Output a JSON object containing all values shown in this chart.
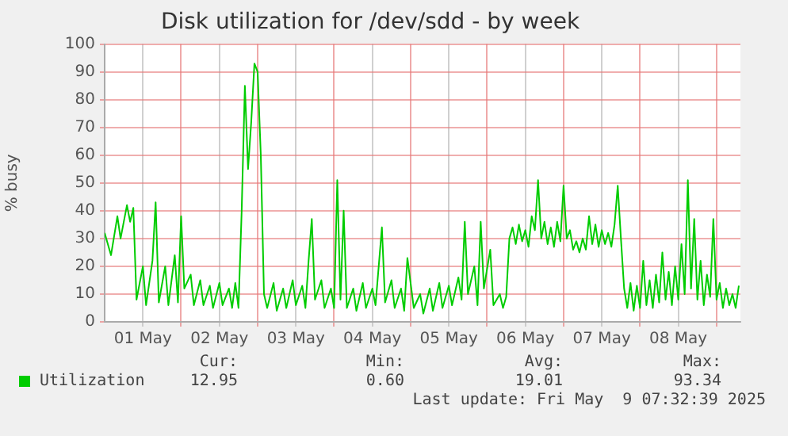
{
  "chart_data": {
    "type": "line",
    "title": "Disk utilization for /dev/sdd - by week",
    "ylabel": "% busy",
    "series": [
      {
        "name": "Utilization",
        "color": "#00cc00",
        "x": [
          "2025-05-01T00:00",
          "2025-05-01T02:00",
          "2025-05-01T04:00",
          "2025-05-01T05:00",
          "2025-05-01T07:00",
          "2025-05-01T08:00",
          "2025-05-01T09:00",
          "2025-05-01T10:00",
          "2025-05-01T12:00",
          "2025-05-01T13:00",
          "2025-05-01T15:00",
          "2025-05-01T16:00",
          "2025-05-01T17:00",
          "2025-05-01T19:00",
          "2025-05-01T20:00",
          "2025-05-01T22:00",
          "2025-05-01T23:00",
          "2025-05-02T00:00",
          "2025-05-02T01:00",
          "2025-05-02T03:00",
          "2025-05-02T04:00",
          "2025-05-02T06:00",
          "2025-05-02T07:00",
          "2025-05-02T09:00",
          "2025-05-02T10:00",
          "2025-05-02T12:00",
          "2025-05-02T13:00",
          "2025-05-02T15:00",
          "2025-05-02T16:00",
          "2025-05-02T17:00",
          "2025-05-02T18:00",
          "2025-05-02T19:00",
          "2025-05-02T20:00",
          "2025-05-02T21:00",
          "2025-05-02T22:00",
          "2025-05-02T23:00",
          "2025-05-03T00:00",
          "2025-05-03T01:00",
          "2025-05-03T02:00",
          "2025-05-03T03:00",
          "2025-05-03T05:00",
          "2025-05-03T06:00",
          "2025-05-03T08:00",
          "2025-05-03T09:00",
          "2025-05-03T11:00",
          "2025-05-03T12:00",
          "2025-05-03T14:00",
          "2025-05-03T15:00",
          "2025-05-03T16:00",
          "2025-05-03T17:00",
          "2025-05-03T18:00",
          "2025-05-03T20:00",
          "2025-05-03T21:00",
          "2025-05-03T23:00",
          "2025-05-04T00:00",
          "2025-05-04T01:00",
          "2025-05-04T02:00",
          "2025-05-04T03:00",
          "2025-05-04T04:00",
          "2025-05-04T06:00",
          "2025-05-04T07:00",
          "2025-05-04T09:00",
          "2025-05-04T10:00",
          "2025-05-04T12:00",
          "2025-05-04T13:00",
          "2025-05-04T15:00",
          "2025-05-04T16:00",
          "2025-05-04T18:00",
          "2025-05-04T19:00",
          "2025-05-04T21:00",
          "2025-05-04T22:00",
          "2025-05-04T23:00",
          "2025-05-05T01:00",
          "2025-05-05T03:00",
          "2025-05-05T04:00",
          "2025-05-05T06:00",
          "2025-05-05T07:00",
          "2025-05-05T09:00",
          "2025-05-05T10:00",
          "2025-05-05T12:00",
          "2025-05-05T13:00",
          "2025-05-05T15:00",
          "2025-05-05T16:00",
          "2025-05-05T17:00",
          "2025-05-05T18:00",
          "2025-05-05T20:00",
          "2025-05-05T21:00",
          "2025-05-05T22:00",
          "2025-05-05T23:00",
          "2025-05-06T01:00",
          "2025-05-06T02:00",
          "2025-05-06T04:00",
          "2025-05-06T05:00",
          "2025-05-06T06:00",
          "2025-05-06T07:00",
          "2025-05-06T08:00",
          "2025-05-06T09:00",
          "2025-05-06T10:00",
          "2025-05-06T11:00",
          "2025-05-06T12:00",
          "2025-05-06T13:00",
          "2025-05-06T14:00",
          "2025-05-06T15:00",
          "2025-05-06T16:00",
          "2025-05-06T17:00",
          "2025-05-06T18:00",
          "2025-05-06T19:00",
          "2025-05-06T20:00",
          "2025-05-06T21:00",
          "2025-05-06T22:00",
          "2025-05-06T23:00",
          "2025-05-07T00:00",
          "2025-05-07T01:00",
          "2025-05-07T02:00",
          "2025-05-07T03:00",
          "2025-05-07T04:00",
          "2025-05-07T05:00",
          "2025-05-07T06:00",
          "2025-05-07T07:00",
          "2025-05-07T08:00",
          "2025-05-07T09:00",
          "2025-05-07T10:00",
          "2025-05-07T11:00",
          "2025-05-07T12:00",
          "2025-05-07T13:00",
          "2025-05-07T14:00",
          "2025-05-07T15:00",
          "2025-05-07T16:00",
          "2025-05-07T17:00",
          "2025-05-07T18:00",
          "2025-05-07T19:00",
          "2025-05-07T20:00",
          "2025-05-07T21:00",
          "2025-05-07T22:00",
          "2025-05-07T23:00",
          "2025-05-08T00:00",
          "2025-05-08T01:00",
          "2025-05-08T02:00",
          "2025-05-08T03:00",
          "2025-05-08T04:00",
          "2025-05-08T05:00",
          "2025-05-08T06:00",
          "2025-05-08T07:00",
          "2025-05-08T08:00",
          "2025-05-08T09:00",
          "2025-05-08T10:00",
          "2025-05-08T11:00",
          "2025-05-08T12:00",
          "2025-05-08T13:00",
          "2025-05-08T14:00",
          "2025-05-08T15:00",
          "2025-05-08T16:00",
          "2025-05-08T17:00",
          "2025-05-08T18:00",
          "2025-05-08T19:00",
          "2025-05-08T20:00",
          "2025-05-08T21:00",
          "2025-05-08T22:00",
          "2025-05-08T23:00",
          "2025-05-09T00:00",
          "2025-05-09T01:00",
          "2025-05-09T02:00",
          "2025-05-09T03:00",
          "2025-05-09T04:00",
          "2025-05-09T05:00",
          "2025-05-09T06:00",
          "2025-05-09T07:00"
        ],
        "values": [
          32,
          24,
          38,
          30,
          42,
          36,
          41,
          8,
          20,
          6,
          22,
          43,
          7,
          20,
          6,
          24,
          7,
          38,
          12,
          17,
          6,
          15,
          6,
          13,
          5,
          14,
          6,
          12,
          5,
          14,
          5,
          40,
          85,
          55,
          72,
          93,
          90,
          60,
          10,
          5,
          14,
          4,
          12,
          5,
          15,
          6,
          13,
          5,
          22,
          37,
          8,
          15,
          5,
          12,
          5,
          51,
          8,
          40,
          5,
          12,
          4,
          14,
          5,
          12,
          6,
          34,
          7,
          15,
          5,
          12,
          4,
          23,
          5,
          10,
          3,
          12,
          4,
          14,
          5,
          13,
          6,
          16,
          8,
          36,
          10,
          20,
          6,
          36,
          12,
          26,
          6,
          10,
          5,
          9,
          30,
          34,
          28,
          35,
          29,
          33,
          27,
          38,
          33,
          51,
          30,
          36,
          28,
          34,
          27,
          36,
          29,
          49,
          30,
          33,
          26,
          29,
          25,
          30,
          26,
          38,
          28,
          35,
          27,
          33,
          28,
          32,
          27,
          35,
          49,
          30,
          12,
          5,
          14,
          4,
          13,
          5,
          22,
          6,
          15,
          5,
          17,
          7,
          25,
          8,
          18,
          6,
          20,
          8,
          28,
          10,
          51,
          12,
          37,
          8,
          22,
          6,
          17,
          9,
          37,
          8,
          14,
          5,
          12,
          6,
          10,
          5,
          13
        ]
      }
    ],
    "xlim": [
      "2025-05-01T00:00",
      "2025-05-09T07:30"
    ],
    "xticks": [
      {
        "value": "2025-05-01T12:00",
        "label": "01 May"
      },
      {
        "value": "2025-05-02T00:00",
        "label": null
      },
      {
        "value": "2025-05-02T12:00",
        "label": "02 May"
      },
      {
        "value": "2025-05-03T00:00",
        "label": null
      },
      {
        "value": "2025-05-03T12:00",
        "label": "03 May"
      },
      {
        "value": "2025-05-04T00:00",
        "label": null
      },
      {
        "value": "2025-05-04T12:00",
        "label": "04 May"
      },
      {
        "value": "2025-05-05T00:00",
        "label": null
      },
      {
        "value": "2025-05-05T12:00",
        "label": "05 May"
      },
      {
        "value": "2025-05-06T00:00",
        "label": null
      },
      {
        "value": "2025-05-06T12:00",
        "label": "06 May"
      },
      {
        "value": "2025-05-07T00:00",
        "label": null
      },
      {
        "value": "2025-05-07T12:00",
        "label": "07 May"
      },
      {
        "value": "2025-05-08T00:00",
        "label": null
      },
      {
        "value": "2025-05-08T12:00",
        "label": "08 May"
      },
      {
        "value": "2025-05-09T00:00",
        "label": null
      }
    ],
    "ylim": [
      0,
      100
    ],
    "yticks": [
      0,
      10,
      20,
      30,
      40,
      50,
      60,
      70,
      80,
      90,
      100
    ],
    "grid": true,
    "legend": "bottom",
    "marker": "none",
    "line_style": "solid",
    "annotations": [
      "Cur:",
      "Min:",
      "Avg:",
      "Max:",
      "12.95",
      "0.60",
      "19.01",
      "93.34",
      "Last update: Fri May  9 07:32:39 2025"
    ]
  }
}
